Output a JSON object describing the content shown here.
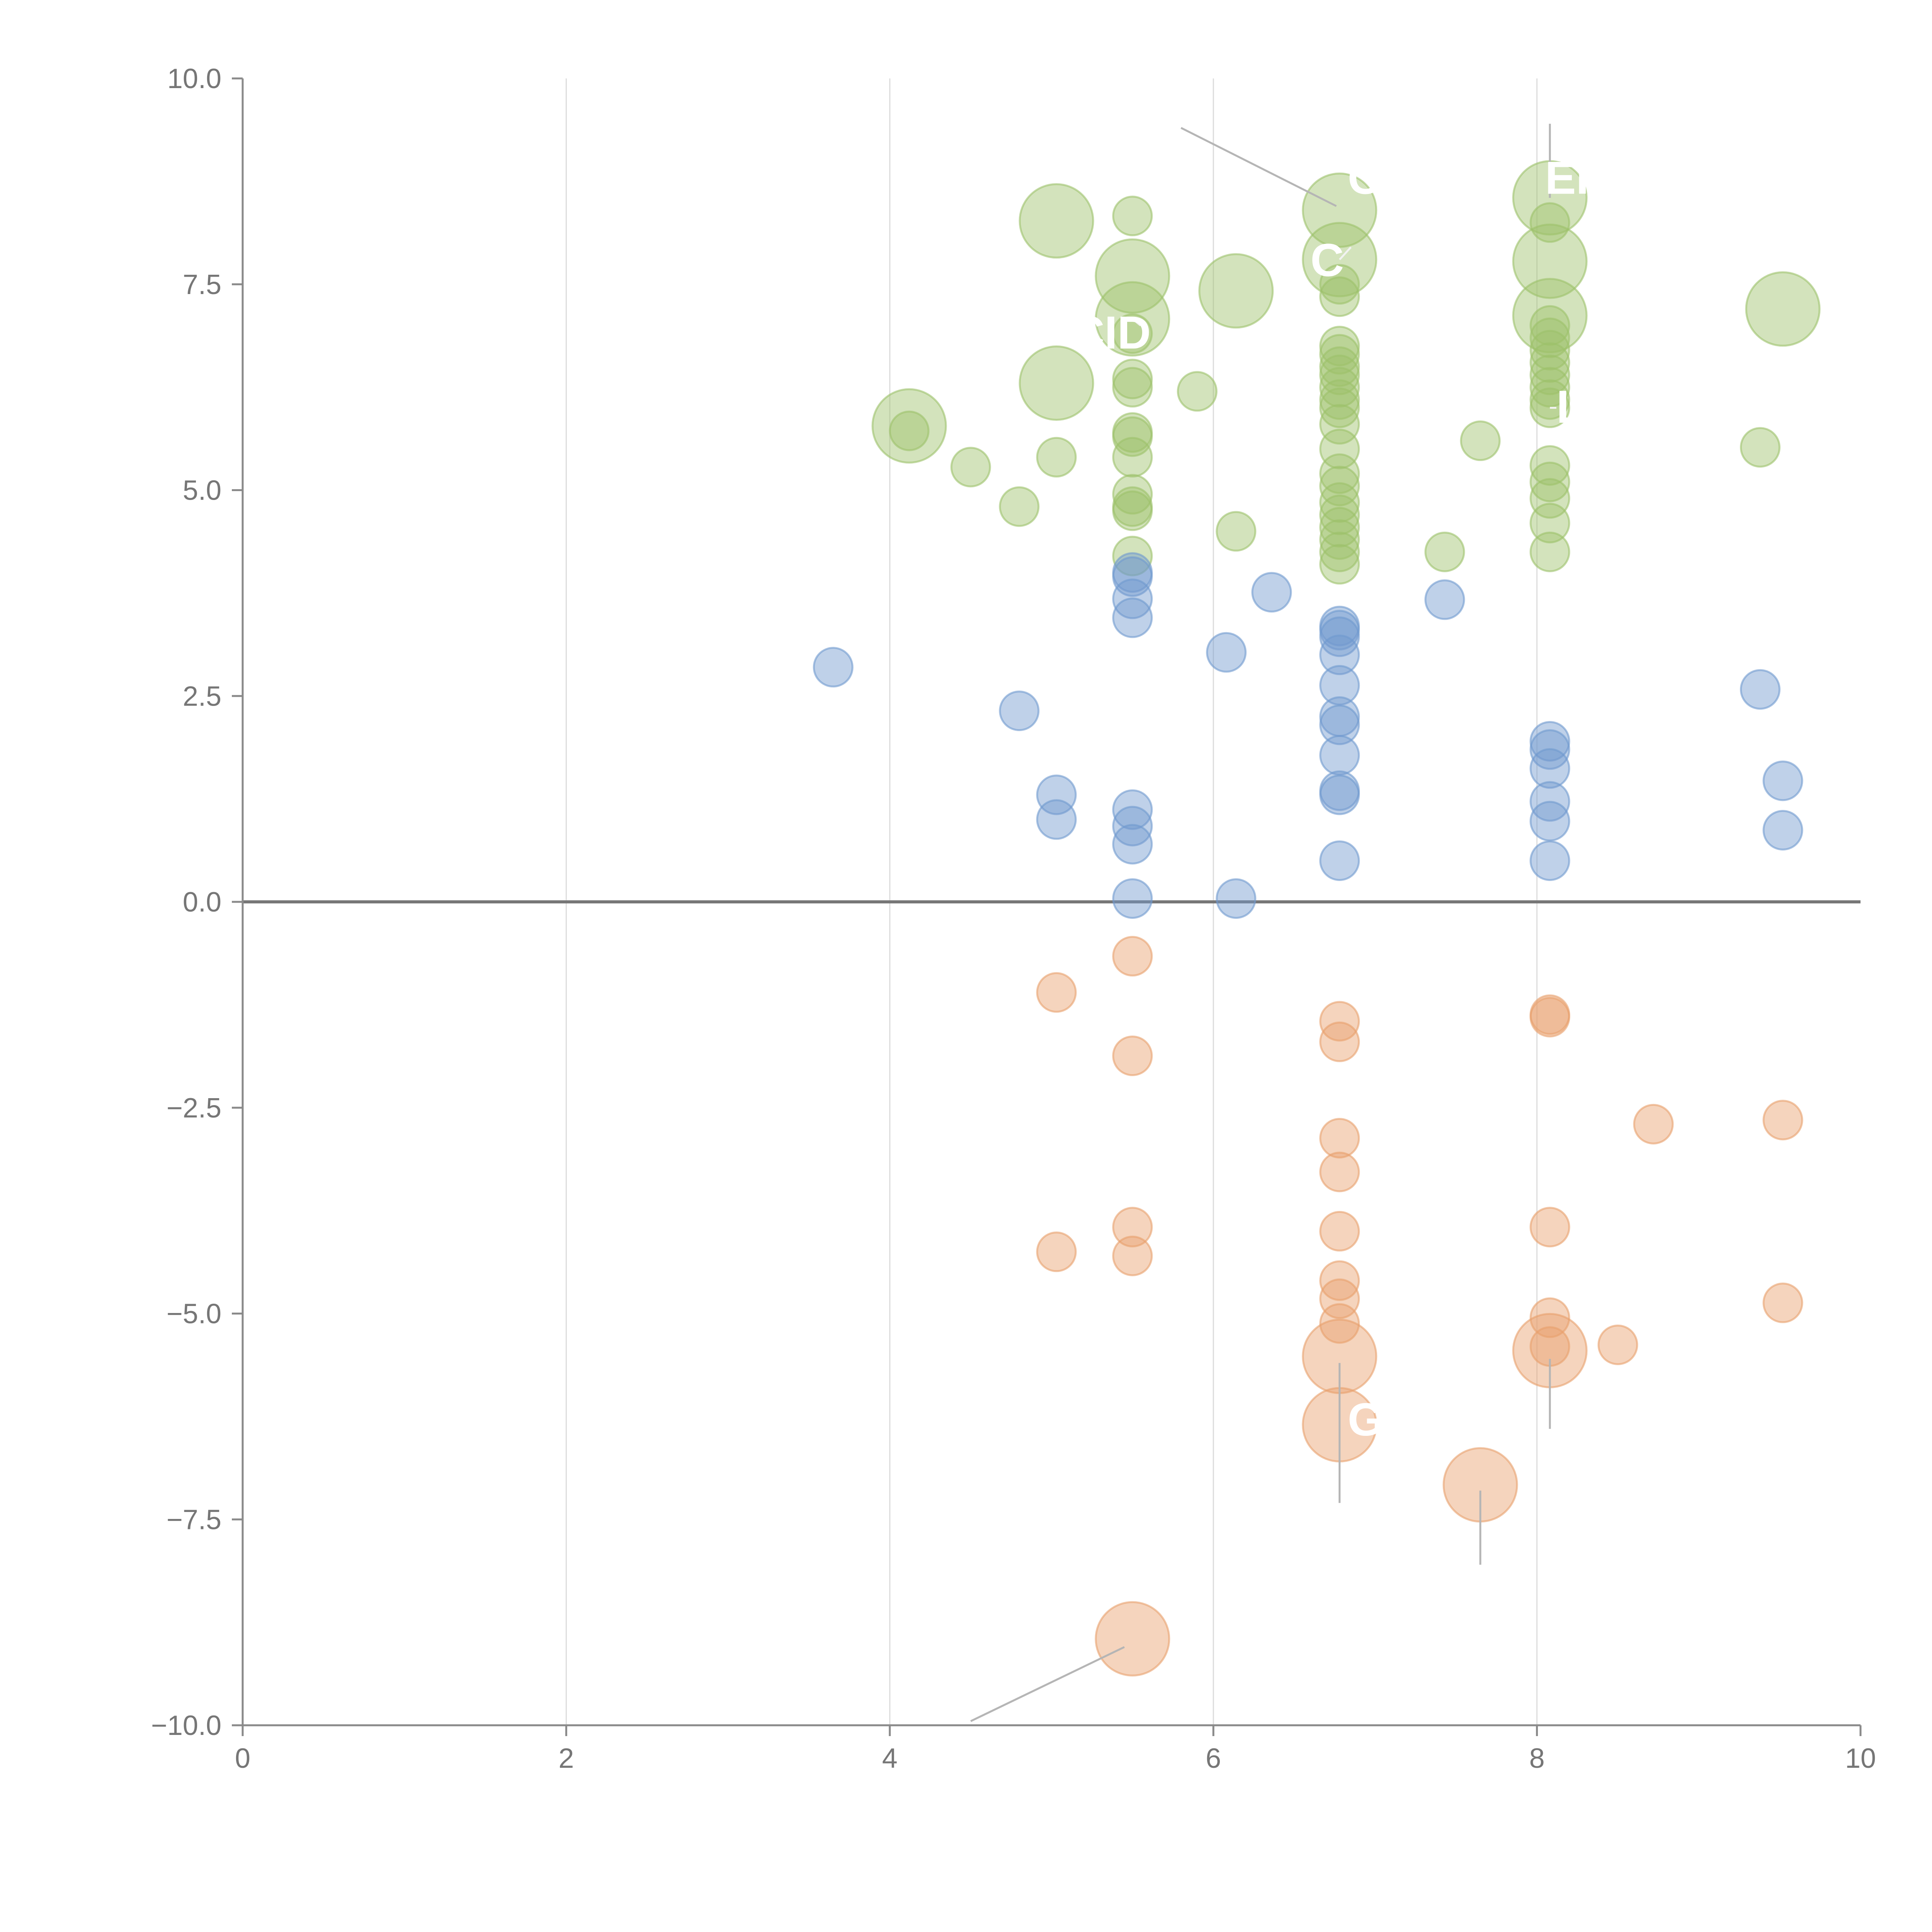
{
  "chart_data": {
    "type": "scatter",
    "title": "",
    "xlabel": "",
    "ylabel": "",
    "xlim": [
      0,
      10
    ],
    "ylim": [
      -10,
      10
    ],
    "grid": {
      "x": true,
      "y": false
    },
    "x_ticks": [
      0,
      2,
      4,
      6,
      8,
      10
    ],
    "x_tick_labels": [
      "0",
      "2",
      "4",
      "6",
      "8",
      "10"
    ],
    "y_ticks": [
      -10,
      -7.5,
      -5,
      -2.5,
      0,
      2.5,
      5,
      7.5,
      10
    ],
    "y_tick_labels": [
      "−10.0",
      "−7.5",
      "−5.0",
      "−2.5",
      "0.0",
      "2.5",
      "5.0",
      "7.5",
      "10.0"
    ],
    "reference_line_y": 0,
    "series": [
      {
        "name": "green",
        "color": "#9dc16b",
        "points": [
          {
            "x": 6.78,
            "y": 8.4,
            "r": 2
          },
          {
            "x": 8.08,
            "y": 8.55,
            "r": 2
          },
          {
            "x": 5.03,
            "y": 8.27,
            "r": 2
          },
          {
            "x": 5.5,
            "y": 8.33,
            "r": 1
          },
          {
            "x": 5.5,
            "y": 7.6,
            "r": 2
          },
          {
            "x": 6.78,
            "y": 7.8,
            "r": 2
          },
          {
            "x": 8.08,
            "y": 7.78,
            "r": 2
          },
          {
            "x": 6.14,
            "y": 7.42,
            "r": 2
          },
          {
            "x": 9.52,
            "y": 7.2,
            "r": 2
          },
          {
            "x": 5.5,
            "y": 7.08,
            "r": 2
          },
          {
            "x": 8.08,
            "y": 7.12,
            "r": 2
          },
          {
            "x": 5.03,
            "y": 6.3,
            "r": 2
          },
          {
            "x": 4.12,
            "y": 5.78,
            "r": 2
          },
          {
            "x": 8.08,
            "y": 8.25,
            "r": 1
          },
          {
            "x": 6.78,
            "y": 7.5,
            "r": 1
          },
          {
            "x": 6.78,
            "y": 7.35,
            "r": 1
          },
          {
            "x": 8.08,
            "y": 7.0,
            "r": 1
          },
          {
            "x": 5.5,
            "y": 6.9,
            "r": 1
          },
          {
            "x": 6.78,
            "y": 6.75,
            "r": 1
          },
          {
            "x": 6.78,
            "y": 6.65,
            "r": 1
          },
          {
            "x": 6.78,
            "y": 6.5,
            "r": 1
          },
          {
            "x": 6.78,
            "y": 6.4,
            "r": 1
          },
          {
            "x": 6.78,
            "y": 6.25,
            "r": 1
          },
          {
            "x": 6.78,
            "y": 6.1,
            "r": 1
          },
          {
            "x": 6.78,
            "y": 6.0,
            "r": 1
          },
          {
            "x": 6.78,
            "y": 5.8,
            "r": 1
          },
          {
            "x": 6.78,
            "y": 5.5,
            "r": 1
          },
          {
            "x": 6.78,
            "y": 5.2,
            "r": 1
          },
          {
            "x": 6.78,
            "y": 5.05,
            "r": 1
          },
          {
            "x": 6.78,
            "y": 4.85,
            "r": 1
          },
          {
            "x": 6.78,
            "y": 4.7,
            "r": 1
          },
          {
            "x": 6.78,
            "y": 4.55,
            "r": 1
          },
          {
            "x": 6.78,
            "y": 4.4,
            "r": 1
          },
          {
            "x": 6.78,
            "y": 4.25,
            "r": 1
          },
          {
            "x": 6.78,
            "y": 4.1,
            "r": 1
          },
          {
            "x": 8.08,
            "y": 6.85,
            "r": 1
          },
          {
            "x": 8.08,
            "y": 6.7,
            "r": 1
          },
          {
            "x": 8.08,
            "y": 6.55,
            "r": 1
          },
          {
            "x": 8.08,
            "y": 6.4,
            "r": 1
          },
          {
            "x": 8.08,
            "y": 6.25,
            "r": 1
          },
          {
            "x": 8.08,
            "y": 6.1,
            "r": 1
          },
          {
            "x": 8.08,
            "y": 6.0,
            "r": 1
          },
          {
            "x": 8.08,
            "y": 5.3,
            "r": 1
          },
          {
            "x": 8.08,
            "y": 5.1,
            "r": 1
          },
          {
            "x": 8.08,
            "y": 4.9,
            "r": 1
          },
          {
            "x": 8.08,
            "y": 4.6,
            "r": 1
          },
          {
            "x": 8.08,
            "y": 4.25,
            "r": 1
          },
          {
            "x": 5.5,
            "y": 6.35,
            "r": 1
          },
          {
            "x": 5.5,
            "y": 6.25,
            "r": 1
          },
          {
            "x": 5.5,
            "y": 5.7,
            "r": 1
          },
          {
            "x": 5.5,
            "y": 5.65,
            "r": 1
          },
          {
            "x": 5.5,
            "y": 5.4,
            "r": 1
          },
          {
            "x": 5.5,
            "y": 4.95,
            "r": 1
          },
          {
            "x": 5.5,
            "y": 4.8,
            "r": 1
          },
          {
            "x": 5.5,
            "y": 4.75,
            "r": 1
          },
          {
            "x": 5.5,
            "y": 4.2,
            "r": 1
          },
          {
            "x": 5.9,
            "y": 6.2,
            "r": 1
          },
          {
            "x": 4.12,
            "y": 5.72,
            "r": 1
          },
          {
            "x": 4.5,
            "y": 5.28,
            "r": 1
          },
          {
            "x": 5.03,
            "y": 5.4,
            "r": 1
          },
          {
            "x": 4.8,
            "y": 4.8,
            "r": 1
          },
          {
            "x": 6.14,
            "y": 4.5,
            "r": 1
          },
          {
            "x": 7.43,
            "y": 4.25,
            "r": 1
          },
          {
            "x": 7.65,
            "y": 5.6,
            "r": 1
          },
          {
            "x": 9.38,
            "y": 5.52,
            "r": 1
          }
        ]
      },
      {
        "name": "blue",
        "color": "#7099cf",
        "points": [
          {
            "x": 3.65,
            "y": 2.85,
            "r": 1
          },
          {
            "x": 4.8,
            "y": 2.32,
            "r": 1
          },
          {
            "x": 5.03,
            "y": 1.3,
            "r": 1
          },
          {
            "x": 5.03,
            "y": 1.0,
            "r": 1
          },
          {
            "x": 5.5,
            "y": 4.0,
            "r": 1
          },
          {
            "x": 5.5,
            "y": 3.95,
            "r": 1
          },
          {
            "x": 5.5,
            "y": 3.68,
            "r": 1
          },
          {
            "x": 5.5,
            "y": 3.45,
            "r": 1
          },
          {
            "x": 5.5,
            "y": 1.12,
            "r": 1
          },
          {
            "x": 5.5,
            "y": 0.92,
            "r": 1
          },
          {
            "x": 5.5,
            "y": 0.7,
            "r": 1
          },
          {
            "x": 5.5,
            "y": 0.04,
            "r": 1
          },
          {
            "x": 6.08,
            "y": 3.03,
            "r": 1
          },
          {
            "x": 6.14,
            "y": 0.04,
            "r": 1
          },
          {
            "x": 6.36,
            "y": 3.76,
            "r": 1
          },
          {
            "x": 6.78,
            "y": 3.35,
            "r": 1
          },
          {
            "x": 6.78,
            "y": 3.3,
            "r": 1
          },
          {
            "x": 6.78,
            "y": 3.22,
            "r": 1
          },
          {
            "x": 6.78,
            "y": 3.0,
            "r": 1
          },
          {
            "x": 6.78,
            "y": 2.63,
            "r": 1
          },
          {
            "x": 6.78,
            "y": 2.25,
            "r": 1
          },
          {
            "x": 6.78,
            "y": 2.15,
            "r": 1
          },
          {
            "x": 6.78,
            "y": 1.78,
            "r": 1
          },
          {
            "x": 6.78,
            "y": 1.35,
            "r": 1
          },
          {
            "x": 6.78,
            "y": 1.3,
            "r": 1
          },
          {
            "x": 6.78,
            "y": 0.5,
            "r": 1
          },
          {
            "x": 7.43,
            "y": 3.67,
            "r": 1
          },
          {
            "x": 8.08,
            "y": 1.95,
            "r": 1
          },
          {
            "x": 8.08,
            "y": 1.85,
            "r": 1
          },
          {
            "x": 8.08,
            "y": 1.62,
            "r": 1
          },
          {
            "x": 8.08,
            "y": 1.22,
            "r": 1
          },
          {
            "x": 8.08,
            "y": 0.98,
            "r": 1
          },
          {
            "x": 8.08,
            "y": 0.5,
            "r": 1
          },
          {
            "x": 9.38,
            "y": 2.58,
            "r": 1
          },
          {
            "x": 9.52,
            "y": 1.47,
            "r": 1
          },
          {
            "x": 9.52,
            "y": 0.87,
            "r": 1
          }
        ]
      },
      {
        "name": "orange",
        "color": "#e8a06c",
        "points": [
          {
            "x": 5.03,
            "y": -1.1,
            "r": 1
          },
          {
            "x": 5.5,
            "y": -0.66,
            "r": 1
          },
          {
            "x": 5.5,
            "y": -1.87,
            "r": 1
          },
          {
            "x": 5.5,
            "y": -3.95,
            "r": 1
          },
          {
            "x": 5.5,
            "y": -4.3,
            "r": 1
          },
          {
            "x": 5.03,
            "y": -4.25,
            "r": 1
          },
          {
            "x": 5.5,
            "y": -8.95,
            "r": 2
          },
          {
            "x": 6.78,
            "y": -1.45,
            "r": 1
          },
          {
            "x": 6.78,
            "y": -1.7,
            "r": 1
          },
          {
            "x": 6.78,
            "y": -2.87,
            "r": 1
          },
          {
            "x": 6.78,
            "y": -3.28,
            "r": 1
          },
          {
            "x": 6.78,
            "y": -4.0,
            "r": 1
          },
          {
            "x": 6.78,
            "y": -4.6,
            "r": 1
          },
          {
            "x": 6.78,
            "y": -4.82,
            "r": 1
          },
          {
            "x": 6.78,
            "y": -5.12,
            "r": 1
          },
          {
            "x": 6.78,
            "y": -5.52,
            "r": 2
          },
          {
            "x": 6.78,
            "y": -6.35,
            "r": 2
          },
          {
            "x": 7.65,
            "y": -7.08,
            "r": 2
          },
          {
            "x": 8.08,
            "y": -1.37,
            "r": 1
          },
          {
            "x": 8.08,
            "y": -1.4,
            "r": 1
          },
          {
            "x": 8.08,
            "y": -3.95,
            "r": 1
          },
          {
            "x": 8.08,
            "y": -5.05,
            "r": 1
          },
          {
            "x": 8.08,
            "y": -5.4,
            "r": 1
          },
          {
            "x": 8.08,
            "y": -5.45,
            "r": 2
          },
          {
            "x": 8.5,
            "y": -5.38,
            "r": 1
          },
          {
            "x": 8.72,
            "y": -2.7,
            "r": 1
          },
          {
            "x": 9.52,
            "y": -2.65,
            "r": 1
          },
          {
            "x": 9.52,
            "y": -4.87,
            "r": 1
          }
        ]
      }
    ],
    "annotations": [
      {
        "text": "C",
        "x": 6.78,
        "y": 8.4,
        "tx": 6.83,
        "ty": 8.6,
        "lx1": 5.8,
        "ly1": 9.4,
        "lx2": 6.76,
        "ly2": 8.45,
        "line_color": "#b5b5b5"
      },
      {
        "text": "ER",
        "x": 8.08,
        "y": 8.55,
        "tx": 8.05,
        "ty": 8.6,
        "lx1": 8.08,
        "ly1": 9.45,
        "lx2": 8.08,
        "ly2": 8.55,
        "line_color": "#b5b5b5"
      },
      {
        "text": "C",
        "x": 6.78,
        "y": 7.8,
        "tx": 6.6,
        "ty": 7.6,
        "lx1": 6.85,
        "ly1": 7.95,
        "lx2": 6.78,
        "ly2": 7.8,
        "line_color": "#f2f2f2"
      },
      {
        "text": "CID",
        "x": 5.5,
        "y": 7.08,
        "tx": 5.12,
        "ty": 6.72,
        "lx1": 5.5,
        "ly1": 7.08,
        "lx2": 5.55,
        "ly2": 7.0,
        "line_color": "#f2f2f2"
      },
      {
        "text": "L",
        "x": 8.08,
        "y": 6.0,
        "tx": 8.12,
        "ty": 5.82,
        "lx1": 8.08,
        "ly1": 6.0,
        "lx2": 8.12,
        "ly2": 6.0,
        "line_color": "#f2f2f2"
      },
      {
        "text": "G",
        "x": 6.78,
        "y": -6.35,
        "tx": 6.83,
        "ty": -6.48,
        "lx1": 6.78,
        "ly1": -5.6,
        "lx2": 6.78,
        "ly2": -7.3,
        "line_color": "#b5b5b5"
      },
      {
        "text": "",
        "x": 8.08,
        "y": -5.45,
        "tx": 8.08,
        "ty": -5.45,
        "lx1": 8.08,
        "ly1": -5.55,
        "lx2": 8.08,
        "ly2": -6.4,
        "line_color": "#b5b5b5"
      },
      {
        "text": "",
        "x": 7.65,
        "y": -7.08,
        "tx": 7.65,
        "ty": -7.08,
        "lx1": 7.65,
        "ly1": -7.15,
        "lx2": 7.65,
        "ly2": -8.05,
        "line_color": "#b5b5b5"
      },
      {
        "text": "",
        "x": 5.5,
        "y": -8.95,
        "tx": 5.5,
        "ty": -8.95,
        "lx1": 5.45,
        "ly1": -9.05,
        "lx2": 4.5,
        "ly2": -9.95,
        "line_color": "#b5b5b5"
      }
    ]
  }
}
